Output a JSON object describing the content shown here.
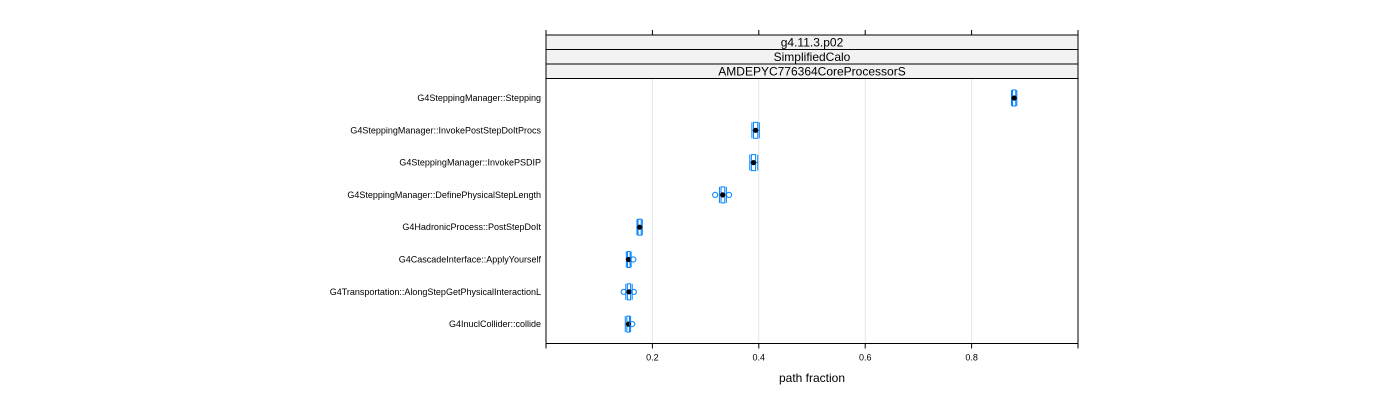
{
  "chart_data": {
    "type": "box",
    "strips": [
      "g4.11.3.p02",
      "SimplifiedCalo",
      "AMDEPYC776364CoreProcessorS"
    ],
    "xlabel": "path fraction",
    "xlim": [
      0,
      1
    ],
    "xticks": [
      0.2,
      0.4,
      0.6,
      0.8
    ],
    "xtick_labels": [
      "0.2",
      "0.4",
      "0.6",
      "0.8"
    ],
    "grid": true,
    "colors": {
      "box": "#0080ff",
      "median": "#000000",
      "grid": "#e6e6e6",
      "strip_bg": "#f2f2f2"
    },
    "categories": [
      "G4SteppingManager::Stepping",
      "G4SteppingManager::InvokePostStepDoItProcs",
      "G4SteppingManager::InvokePSDIP",
      "G4SteppingManager::DefinePhysicalStepLength",
      "G4HadronicProcess::PostStepDoIt",
      "G4CascadeInterface::ApplyYourself",
      "G4Transportation::AlongStepGetPhysicalInteractionL",
      "G4InuclCollider::collide"
    ],
    "boxes": [
      {
        "median": 0.88,
        "q1": 0.877,
        "q3": 0.883,
        "low": 0.875,
        "high": 0.885,
        "outliers": []
      },
      {
        "median": 0.394,
        "q1": 0.39,
        "q3": 0.398,
        "low": 0.387,
        "high": 0.401,
        "outliers": []
      },
      {
        "median": 0.39,
        "q1": 0.386,
        "q3": 0.394,
        "low": 0.383,
        "high": 0.398,
        "outliers": []
      },
      {
        "median": 0.332,
        "q1": 0.329,
        "q3": 0.336,
        "low": 0.326,
        "high": 0.339,
        "outliers": [
          0.318,
          0.344
        ]
      },
      {
        "median": 0.176,
        "q1": 0.173,
        "q3": 0.179,
        "low": 0.171,
        "high": 0.181,
        "outliers": []
      },
      {
        "median": 0.155,
        "q1": 0.153,
        "q3": 0.158,
        "low": 0.151,
        "high": 0.16,
        "outliers": [
          0.164
        ]
      },
      {
        "median": 0.156,
        "q1": 0.153,
        "q3": 0.159,
        "low": 0.15,
        "high": 0.162,
        "outliers": [
          0.146,
          0.165
        ]
      },
      {
        "median": 0.155,
        "q1": 0.152,
        "q3": 0.157,
        "low": 0.149,
        "high": 0.159,
        "outliers": [
          0.162
        ]
      }
    ]
  }
}
